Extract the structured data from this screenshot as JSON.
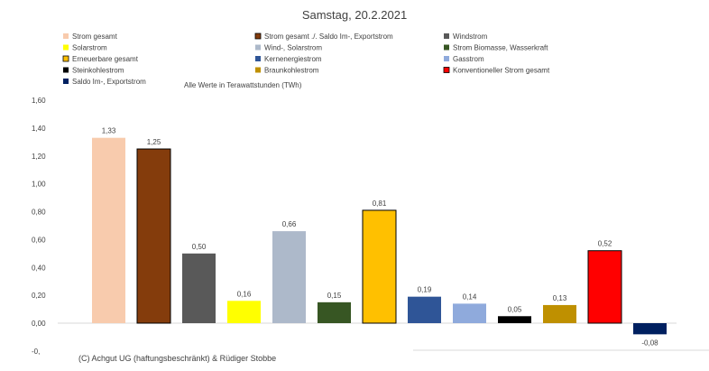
{
  "chart_data": {
    "type": "bar",
    "title": "Samstag, 20.2.2021",
    "note": "Alle Werte in Terawattstunden (TWh)",
    "credit": "(C) Achgut UG (haftungsbeschränkt) & Rüdiger Stobbe",
    "ylim": [
      -0.1,
      1.6
    ],
    "yticks": [
      {
        "value": 1.6,
        "label": "1,60"
      },
      {
        "value": 1.4,
        "label": "1,40"
      },
      {
        "value": 1.2,
        "label": "1,20"
      },
      {
        "value": 1.0,
        "label": "1,00"
      },
      {
        "value": 0.8,
        "label": "0,80"
      },
      {
        "value": 0.6,
        "label": "0,60"
      },
      {
        "value": 0.4,
        "label": "0,40"
      },
      {
        "value": 0.2,
        "label": "0,20"
      },
      {
        "value": 0.0,
        "label": "0,00"
      },
      {
        "value": -0.2,
        "label": "-0,"
      }
    ],
    "grid": false,
    "legend_position": "top",
    "series": [
      {
        "name": "Strom gesamt",
        "value": 1.33,
        "label": "1,33",
        "color": "#f8cbad",
        "outline": false
      },
      {
        "name": "Strom gesamt ./. Saldo Im-, Exportstrom",
        "value": 1.25,
        "label": "1,25",
        "color": "#843c0c",
        "outline": true
      },
      {
        "name": "Windstrom",
        "value": 0.5,
        "label": "0,50",
        "color": "#595959",
        "outline": false
      },
      {
        "name": "Solarstrom",
        "value": 0.16,
        "label": "0,16",
        "color": "#ffff00",
        "outline": false
      },
      {
        "name": "Wind-, Solarstrom",
        "value": 0.66,
        "label": "0,66",
        "color": "#adb9ca",
        "outline": false
      },
      {
        "name": "Strom Biomasse, Wasserkraft",
        "value": 0.15,
        "label": "0,15",
        "color": "#375623",
        "outline": false
      },
      {
        "name": "Erneuerbare gesamt",
        "value": 0.81,
        "label": "0,81",
        "color": "#ffc000",
        "outline": true
      },
      {
        "name": "Kernenergiestrom",
        "value": 0.19,
        "label": "0,19",
        "color": "#2f5597",
        "outline": false
      },
      {
        "name": "Gasstrom",
        "value": 0.14,
        "label": "0,14",
        "color": "#8faadc",
        "outline": false
      },
      {
        "name": "Steinkohlestrom",
        "value": 0.05,
        "label": "0,05",
        "color": "#000000",
        "outline": false
      },
      {
        "name": "Braunkohlestrom",
        "value": 0.13,
        "label": "0,13",
        "color": "#bf9000",
        "outline": false
      },
      {
        "name": "Konventioneller Strom gesamt",
        "value": 0.52,
        "label": "0,52",
        "color": "#ff0000",
        "outline": true
      },
      {
        "name": "Saldo Im-, Exportstrom",
        "value": -0.08,
        "label": "-0,08",
        "color": "#002060",
        "outline": false
      }
    ]
  }
}
